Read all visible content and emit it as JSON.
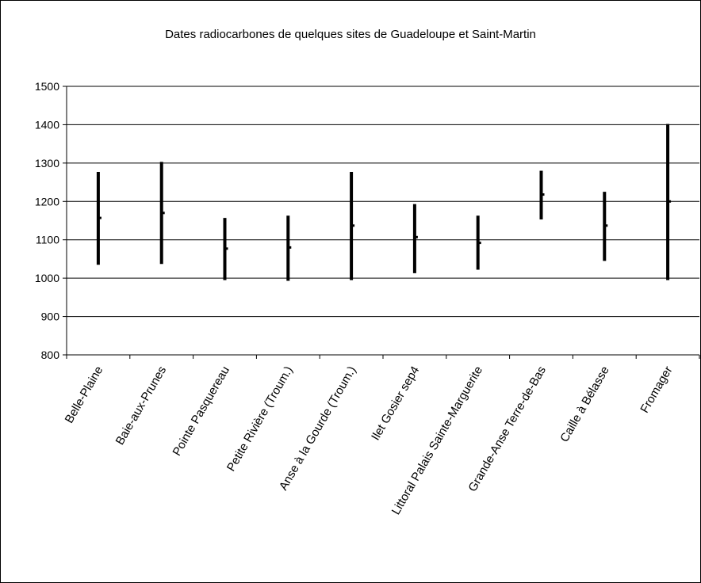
{
  "chart_data": {
    "type": "range",
    "title": "Dates radiocarbones de quelques sites de Guadeloupe et Saint-Martin",
    "xlabel": "",
    "ylabel": "",
    "ylim": [
      800,
      1500
    ],
    "yticks": [
      800,
      900,
      1000,
      1100,
      1200,
      1300,
      1400,
      1500
    ],
    "grid": "horizontal",
    "legend": "none",
    "bar_color": "#000000",
    "categories": [
      "Belle-Plaine",
      "Baie-aux-Prunes",
      "Pointe Pasquereau",
      "Petite Rivière (Troum.)",
      "Anse à la Gourde (Troum.)",
      "Ilet Gosier sep4",
      "Littoral Palais Sainte-Marguerite",
      "Grande-Anse Terre-de-Bas",
      "Caille à Bélasse",
      "Fromager"
    ],
    "low": [
      1035,
      1037,
      995,
      993,
      995,
      1013,
      1022,
      1153,
      1045,
      995
    ],
    "high": [
      1277,
      1303,
      1157,
      1163,
      1277,
      1193,
      1163,
      1280,
      1225,
      1402
    ],
    "mid": [
      1157,
      1170,
      1077,
      1080,
      1137,
      1107,
      1092,
      1218,
      1137,
      1200
    ]
  }
}
